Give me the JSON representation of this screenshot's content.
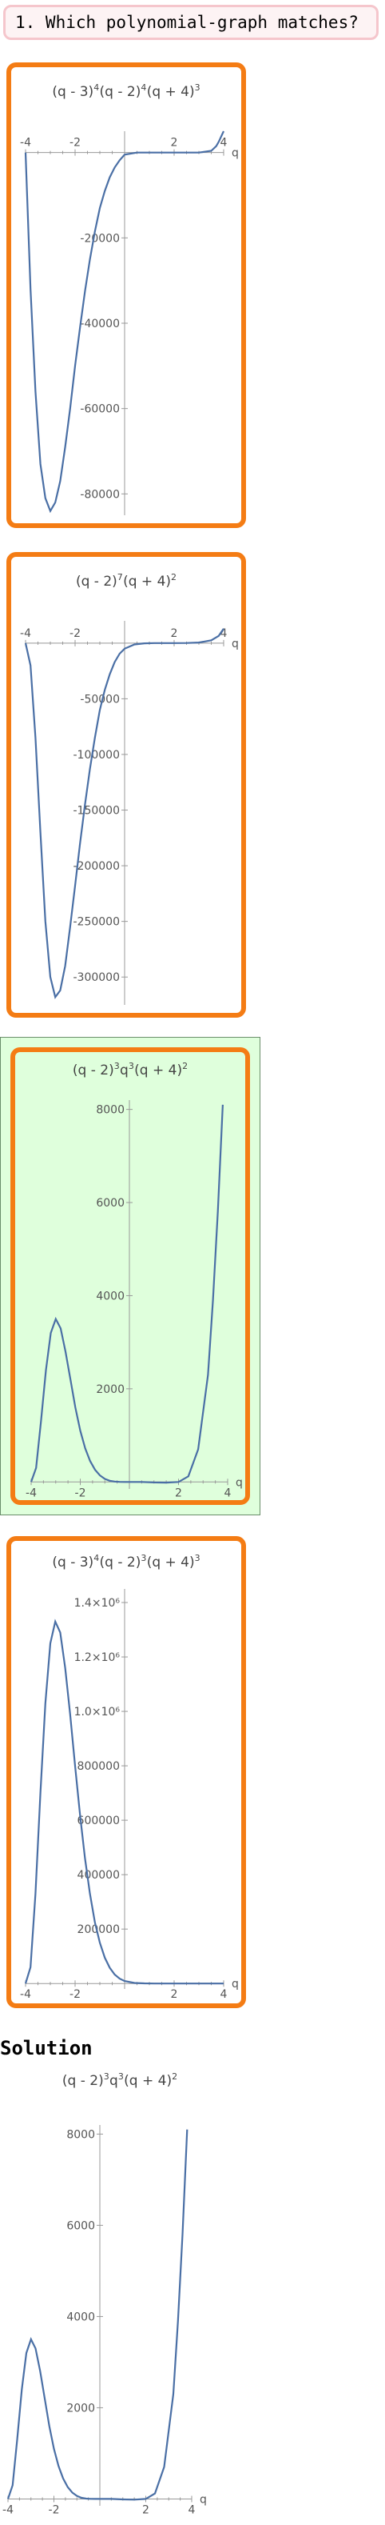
{
  "question": {
    "text": "1. Which polynomial-graph matches?"
  },
  "solution": {
    "heading": "Solution"
  },
  "charts": [
    {
      "title": {
        "base": [
          "(q - 3)",
          "(q - 2)",
          "(q + 4)"
        ],
        "exp": [
          "4",
          "4",
          "3"
        ]
      },
      "chart_data": {
        "type": "line",
        "x_label": "q",
        "xlim": [
          -4,
          4
        ],
        "ylim": [
          -85000,
          5000
        ],
        "x_ticks": [
          "-4",
          "-2",
          "2",
          "4"
        ],
        "y_ticks": [
          "-20000",
          "-40000",
          "-60000",
          "-80000"
        ],
        "x": [
          -4,
          -3.8,
          -3.6,
          -3.4,
          -3.2,
          -3,
          -2.8,
          -2.6,
          -2.4,
          -2.2,
          -2,
          -1.8,
          -1.6,
          -1.4,
          -1.2,
          -1,
          -0.8,
          -0.6,
          -0.4,
          -0.2,
          0,
          0.5,
          1,
          1.5,
          2,
          2.5,
          3,
          3.5,
          3.7,
          3.8,
          4
        ],
        "y": [
          0,
          -32000,
          -56000,
          -73000,
          -81000,
          -84000,
          -82000,
          -77000,
          -69000,
          -60000,
          -50000,
          -41000,
          -32500,
          -25000,
          -18500,
          -13000,
          -9000,
          -5800,
          -3500,
          -1800,
          -500,
          0,
          0,
          0,
          0,
          0,
          0,
          400,
          1500,
          2500,
          5000
        ]
      }
    },
    {
      "title": {
        "base": [
          "(q - 2)",
          "(q + 4)"
        ],
        "exp": [
          "7",
          "2"
        ]
      },
      "chart_data": {
        "type": "line",
        "x_label": "q",
        "xlim": [
          -4,
          4
        ],
        "ylim": [
          -325000,
          20000
        ],
        "x_ticks": [
          "-4",
          "-2",
          "2",
          "4"
        ],
        "y_ticks": [
          "-50000",
          "-100000",
          "-150000",
          "-200000",
          "-250000",
          "-300000"
        ],
        "x": [
          -4,
          -3.8,
          -3.6,
          -3.4,
          -3.2,
          -3,
          -2.8,
          -2.6,
          -2.4,
          -2.2,
          -2,
          -1.8,
          -1.6,
          -1.4,
          -1.2,
          -1,
          -0.8,
          -0.6,
          -0.4,
          -0.2,
          0,
          0.4,
          0.8,
          1.2,
          1.6,
          2,
          2.5,
          3,
          3.5,
          3.8,
          4
        ],
        "y": [
          0,
          -20000,
          -85000,
          -170000,
          -250000,
          -300000,
          -318000,
          -312000,
          -290000,
          -255000,
          -218000,
          -180000,
          -145000,
          -113000,
          -85000,
          -60000,
          -42000,
          -28000,
          -17000,
          -9500,
          -5000,
          -1200,
          -200,
          0,
          0,
          0,
          100,
          500,
          2500,
          6500,
          13000
        ]
      }
    },
    {
      "title": {
        "base": [
          "(q - 2)",
          "q",
          "(q + 4)"
        ],
        "exp": [
          "3",
          "3",
          "2"
        ]
      },
      "chart_data": {
        "type": "line",
        "x_label": "q",
        "xlim": [
          -4,
          4
        ],
        "ylim": [
          -150,
          8200
        ],
        "x_ticks": [
          "-4",
          "-2",
          "2",
          "4"
        ],
        "y_ticks": [
          "2000",
          "4000",
          "6000",
          "8000"
        ],
        "x": [
          -4,
          -3.8,
          -3.6,
          -3.4,
          -3.2,
          -3,
          -2.8,
          -2.6,
          -2.4,
          -2.2,
          -2,
          -1.8,
          -1.6,
          -1.4,
          -1.2,
          -1,
          -0.8,
          -0.6,
          -0.4,
          -0.2,
          0,
          0.5,
          1,
          1.5,
          2,
          2.4,
          2.8,
          3.2,
          3.4,
          3.6,
          3.8
        ],
        "y": [
          0,
          300,
          1300,
          2400,
          3200,
          3500,
          3300,
          2800,
          2200,
          1600,
          1100,
          720,
          450,
          260,
          140,
          65,
          25,
          8,
          2,
          0,
          0,
          0,
          -10,
          -15,
          0,
          120,
          700,
          2300,
          3900,
          5800,
          8100
        ]
      }
    },
    {
      "title": {
        "base": [
          "(q - 3)",
          "(q - 2)",
          "(q + 4)"
        ],
        "exp": [
          "4",
          "3",
          "3"
        ]
      },
      "chart_data": {
        "type": "line",
        "x_label": "q",
        "xlim": [
          -4,
          4
        ],
        "ylim": [
          -20000,
          1450000
        ],
        "x_ticks": [
          "-4",
          "-2",
          "2",
          "4"
        ],
        "y_ticks": [
          "200000",
          "400000",
          "600000",
          "800000",
          "1.0×10⁶",
          "1.2×10⁶",
          "1.4×10⁶"
        ],
        "x": [
          -4,
          -3.8,
          -3.6,
          -3.4,
          -3.2,
          -3,
          -2.8,
          -2.6,
          -2.4,
          -2.2,
          -2,
          -1.8,
          -1.6,
          -1.4,
          -1.2,
          -1,
          -0.8,
          -0.6,
          -0.4,
          -0.2,
          0,
          0.4,
          0.8,
          1.2,
          1.6,
          2,
          2.5,
          3,
          3.5,
          4
        ],
        "y": [
          0,
          60000,
          330000,
          700000,
          1030000,
          1250000,
          1330000,
          1290000,
          1160000,
          990000,
          800000,
          620000,
          460000,
          330000,
          225000,
          150000,
          95000,
          58000,
          33000,
          18000,
          9000,
          2000,
          500,
          100,
          0,
          0,
          0,
          0,
          0,
          0
        ]
      }
    },
    {
      "title": {
        "base": [
          "(q - 2)",
          "q",
          "(q + 4)"
        ],
        "exp": [
          "3",
          "3",
          "2"
        ]
      },
      "chart_data": {
        "type": "line",
        "x_label": "q",
        "xlim": [
          -4,
          4
        ],
        "ylim": [
          -150,
          8200
        ],
        "x_ticks": [
          "-4",
          "-2",
          "2",
          "4"
        ],
        "y_ticks": [
          "2000",
          "4000",
          "6000",
          "8000"
        ],
        "x": [
          -4,
          -3.8,
          -3.6,
          -3.4,
          -3.2,
          -3,
          -2.8,
          -2.6,
          -2.4,
          -2.2,
          -2,
          -1.8,
          -1.6,
          -1.4,
          -1.2,
          -1,
          -0.8,
          -0.6,
          -0.4,
          -0.2,
          0,
          0.5,
          1,
          1.5,
          2,
          2.4,
          2.8,
          3.2,
          3.4,
          3.6,
          3.8
        ],
        "y": [
          0,
          300,
          1300,
          2400,
          3200,
          3500,
          3300,
          2800,
          2200,
          1600,
          1100,
          720,
          450,
          260,
          140,
          65,
          25,
          8,
          2,
          0,
          0,
          0,
          -10,
          -15,
          0,
          120,
          700,
          2300,
          3900,
          5800,
          8100
        ]
      }
    }
  ]
}
